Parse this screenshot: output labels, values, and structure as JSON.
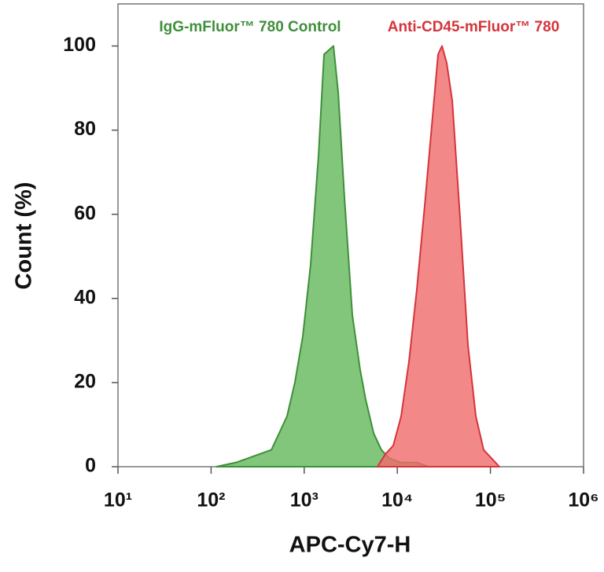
{
  "chart_data": {
    "type": "area",
    "xlabel": "APC-Cy7-H",
    "ylabel": "Count (%)",
    "xscale": "log",
    "xlim": [
      10,
      1000000
    ],
    "ylim": [
      0,
      110
    ],
    "xticks": [
      {
        "value": 10,
        "label": "10¹"
      },
      {
        "value": 100,
        "label": "10²"
      },
      {
        "value": 1000,
        "label": "10³"
      },
      {
        "value": 10000,
        "label": "10⁴"
      },
      {
        "value": 100000,
        "label": "10⁵"
      },
      {
        "value": 1000000,
        "label": "10⁶"
      }
    ],
    "yticks": [
      0,
      20,
      40,
      60,
      80,
      100
    ],
    "series": [
      {
        "name": "IgG-mFluor™ 780 Control",
        "color": "#3f8f3a",
        "fill": "#62b85a",
        "x": [
          114,
          185,
          248,
          331,
          444,
          539,
          654,
          794,
          966,
          1172,
          1425,
          1633,
          1836,
          2063,
          2317,
          2705,
          3289,
          3990,
          4571,
          5559,
          6745,
          8204,
          10990,
          16180,
          21670
        ],
        "values": [
          0,
          1,
          2,
          3,
          4,
          8,
          12,
          20,
          31,
          48,
          74,
          98,
          99,
          100,
          89,
          64,
          36,
          23,
          16,
          8,
          4,
          2,
          1,
          1,
          0
        ]
      },
      {
        "name": "Anti-CD45-mFluor™ 780",
        "color": "#d6343a",
        "fill": "#f06a6a",
        "x": [
          6124,
          7447,
          9036,
          10990,
          13340,
          16180,
          19680,
          23880,
          27400,
          30200,
          33890,
          38900,
          47210,
          57300,
          69660,
          84530,
          102800,
          124700
        ],
        "values": [
          0,
          3,
          5,
          12,
          25,
          42,
          62,
          83,
          98,
          100,
          96,
          87,
          59,
          29,
          12,
          4,
          2,
          0
        ]
      }
    ]
  }
}
